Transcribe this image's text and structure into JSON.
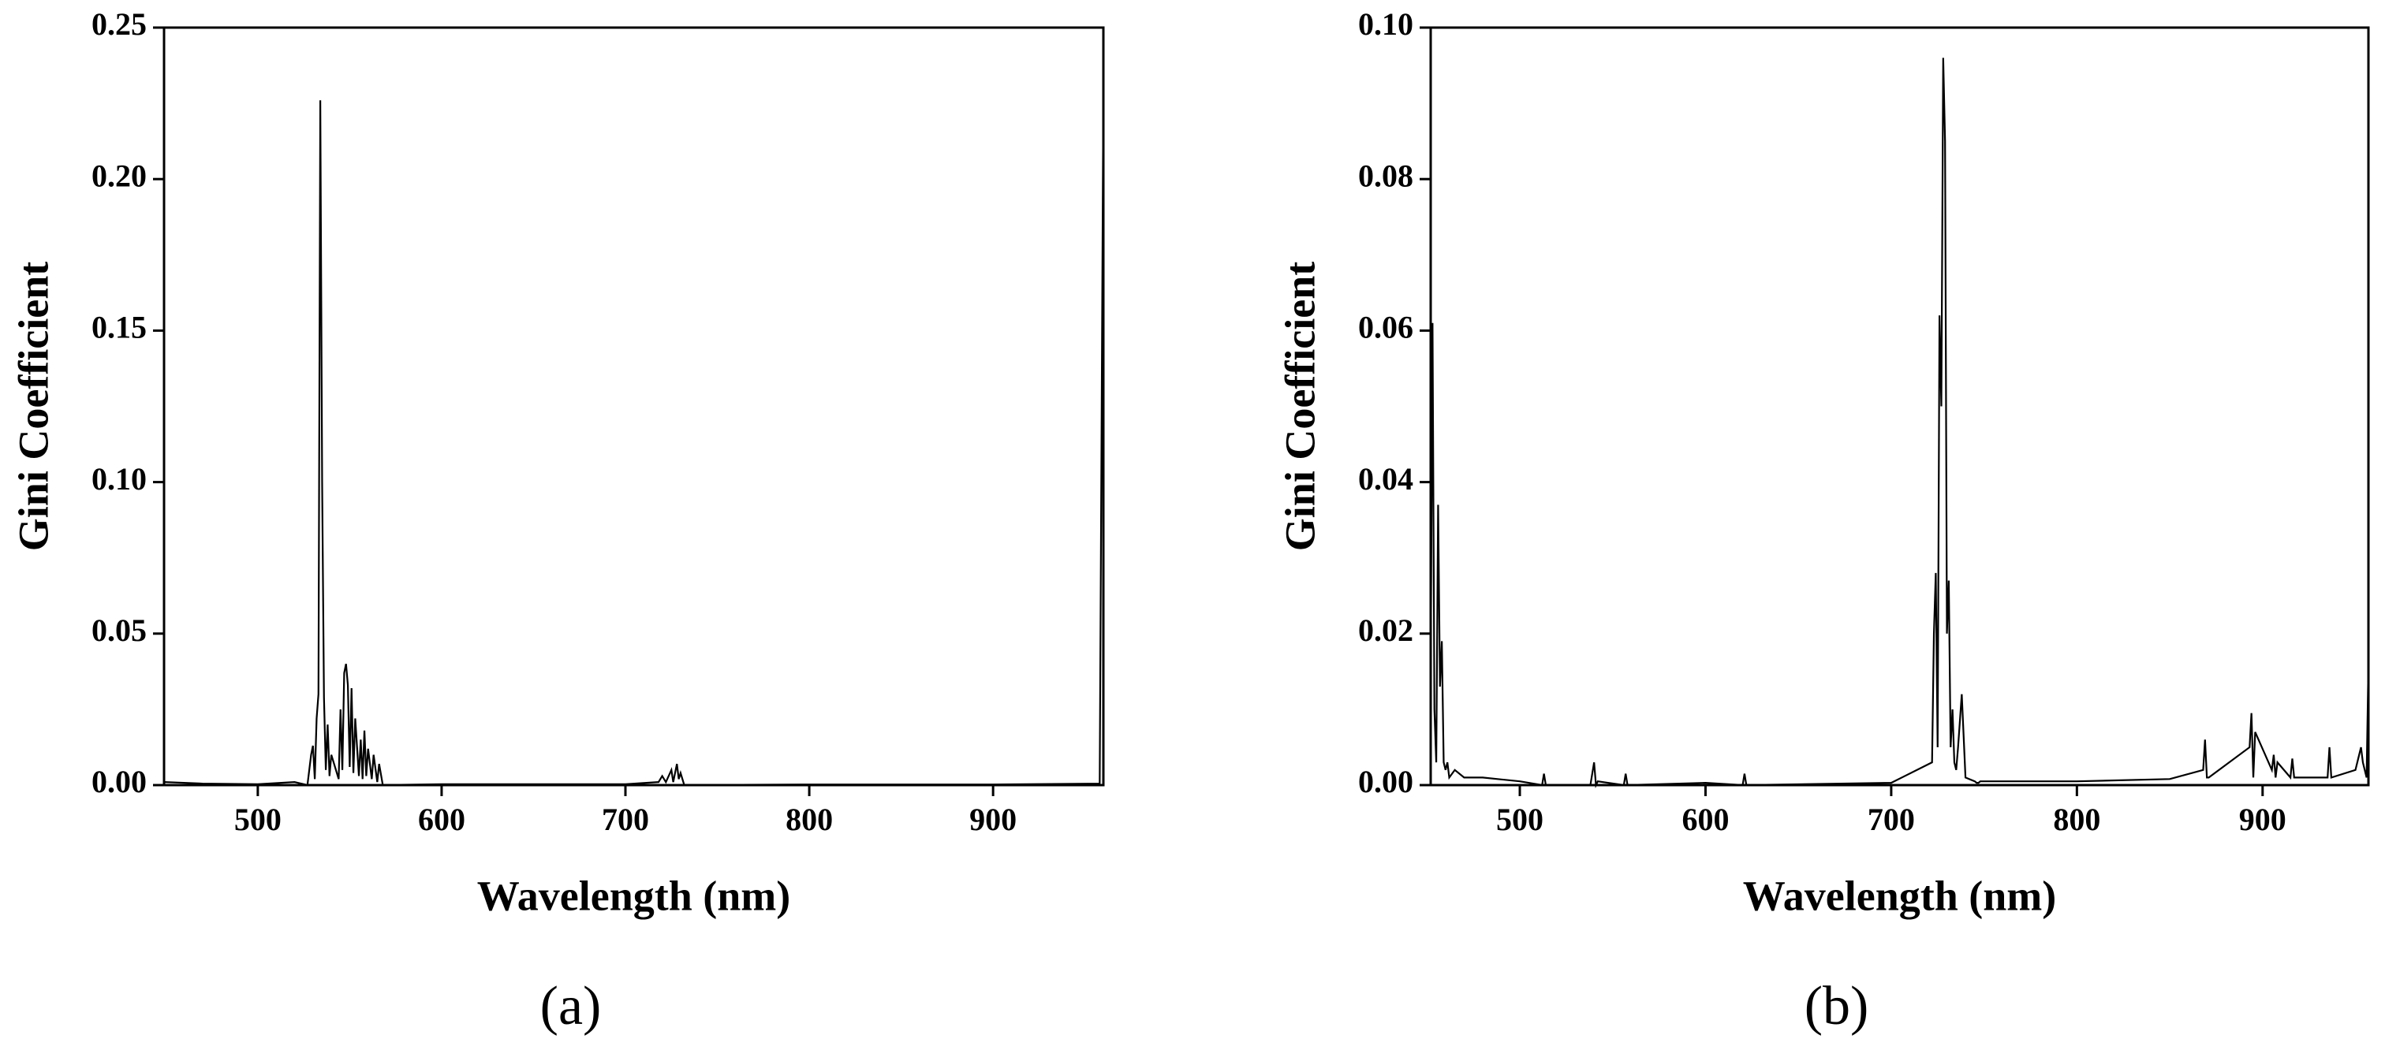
{
  "chart_data": [
    {
      "type": "line",
      "panel_label": "(a)",
      "xlabel": "Wavelength (nm)",
      "ylabel": "Gini Coefficient",
      "color": "#000000",
      "x": [
        449,
        470,
        500,
        520,
        527,
        529,
        530,
        531,
        532,
        533,
        534,
        535,
        536,
        537,
        538,
        539,
        540,
        544,
        545,
        546,
        547,
        548,
        549,
        550,
        551,
        552,
        553,
        555,
        556,
        557,
        558,
        559,
        560,
        562,
        563,
        565,
        566,
        568,
        600,
        700,
        718,
        720,
        722,
        725,
        726,
        728,
        729,
        730,
        732,
        800,
        900,
        958,
        960
      ],
      "values": [
        0.001,
        0.0005,
        0.0003,
        0.001,
        0,
        0.01,
        0.013,
        0.002,
        0.022,
        0.03,
        0.226,
        0.1,
        0.029,
        0.005,
        0.02,
        0.003,
        0.01,
        0.002,
        0.025,
        0.005,
        0.037,
        0.04,
        0.033,
        0.006,
        0.032,
        0.004,
        0.022,
        0.003,
        0.015,
        0.002,
        0.018,
        0.003,
        0.012,
        0.002,
        0.01,
        0.001,
        0.007,
        0,
        0.0003,
        0.0003,
        0.001,
        0.003,
        0.001,
        0.005,
        0.001,
        0.007,
        0.002,
        0.004,
        0,
        0.0002,
        0.0002,
        0.0005,
        0.23
      ],
      "xlim": [
        449,
        960
      ],
      "ylim": [
        0,
        0.25
      ],
      "xticks": [
        500,
        600,
        700,
        800,
        900
      ],
      "yticks": [
        {
          "value": 0,
          "label": "0.00"
        },
        {
          "value": 0.05,
          "label": "0.05"
        },
        {
          "value": 0.1,
          "label": "0.10"
        },
        {
          "value": 0.15,
          "label": "0.15"
        },
        {
          "value": 0.2,
          "label": "0.20"
        },
        {
          "value": 0.25,
          "label": "0.25"
        }
      ]
    },
    {
      "type": "line",
      "panel_label": "(b)",
      "xlabel": "Wavelength (nm)",
      "ylabel": "Gini Coefficient",
      "color": "#000000",
      "x": [
        452,
        453,
        454,
        455,
        456,
        457,
        458,
        459,
        460,
        461,
        462,
        465,
        470,
        480,
        500,
        512,
        513,
        514,
        538,
        540,
        541,
        542,
        556,
        557,
        558,
        600,
        620,
        621,
        622,
        700,
        722,
        723,
        724,
        725,
        726,
        727,
        728,
        729,
        730,
        731,
        732,
        733,
        734,
        735,
        736,
        738,
        740,
        745,
        746,
        747,
        748,
        760,
        800,
        850,
        868,
        869,
        870,
        871,
        893,
        894,
        895,
        896,
        905,
        906,
        907,
        908,
        915,
        916,
        917,
        935,
        936,
        937,
        950,
        952,
        953,
        954,
        956,
        957
      ],
      "values": [
        0.015,
        0.061,
        0.01,
        0.003,
        0.037,
        0.013,
        0.019,
        0.003,
        0.002,
        0.003,
        0.001,
        0.002,
        0.001,
        0.001,
        0.0005,
        0,
        0.0015,
        0,
        0,
        0.003,
        0,
        0.0005,
        0,
        0.0015,
        0,
        0.0003,
        0,
        0.0015,
        0,
        0.0003,
        0.003,
        0.02,
        0.028,
        0.005,
        0.062,
        0.05,
        0.096,
        0.085,
        0.02,
        0.027,
        0.005,
        0.01,
        0.003,
        0.002,
        0.005,
        0.012,
        0.001,
        0.0005,
        0.0003,
        0.0003,
        0.0005,
        0.0005,
        0.0005,
        0.0008,
        0.002,
        0.006,
        0.001,
        0.001,
        0.005,
        0.0095,
        0.001,
        0.007,
        0.002,
        0.004,
        0.001,
        0.003,
        0.001,
        0.0035,
        0.001,
        0.001,
        0.005,
        0.001,
        0.002,
        0.004,
        0.005,
        0.003,
        0.001,
        0.016
      ],
      "xlim": [
        452,
        957
      ],
      "ylim": [
        0,
        0.1
      ],
      "xticks": [
        500,
        600,
        700,
        800,
        900
      ],
      "yticks": [
        {
          "value": 0,
          "label": "0.00"
        },
        {
          "value": 0.02,
          "label": "0.02"
        },
        {
          "value": 0.04,
          "label": "0.04"
        },
        {
          "value": 0.06,
          "label": "0.06"
        },
        {
          "value": 0.08,
          "label": "0.08"
        },
        {
          "value": 0.1,
          "label": "0.10"
        }
      ]
    }
  ]
}
